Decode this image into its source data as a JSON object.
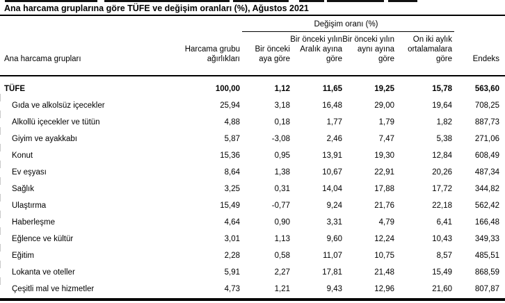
{
  "title": "Ana harcama gruplarına göre TÜFE ve değişim oranları (%), Ağustos 2021",
  "table": {
    "group_header": "Değişim oranı (%)",
    "columns": [
      "Ana harcama grupları",
      "Harcama grubu ağırlıkları",
      "Bir önceki aya göre",
      "Bir önceki yılın Aralık ayına göre",
      "Bir önceki yılın aynı ayına göre",
      "On iki aylık ortalamalara göre",
      "Endeks"
    ],
    "rows": [
      {
        "name": "TÜFE",
        "bold": true,
        "values": [
          "100,00",
          "1,12",
          "11,65",
          "19,25",
          "15,78",
          "563,60"
        ]
      },
      {
        "name": "Gıda ve alkolsüz içecekler",
        "values": [
          "25,94",
          "3,18",
          "16,48",
          "29,00",
          "19,64",
          "708,25"
        ]
      },
      {
        "name": "Alkollü içecekler ve tütün",
        "values": [
          "4,88",
          "0,18",
          "1,77",
          "1,79",
          "1,82",
          "887,73"
        ]
      },
      {
        "name": "Giyim ve ayakkabı",
        "values": [
          "5,87",
          "-3,08",
          "2,46",
          "7,47",
          "5,38",
          "271,06"
        ]
      },
      {
        "name": "Konut",
        "values": [
          "15,36",
          "0,95",
          "13,91",
          "19,30",
          "12,84",
          "608,49"
        ]
      },
      {
        "name": "Ev eşyası",
        "values": [
          "8,64",
          "1,38",
          "10,67",
          "22,91",
          "20,26",
          "487,34"
        ]
      },
      {
        "name": "Sağlık",
        "values": [
          "3,25",
          "0,31",
          "14,04",
          "17,88",
          "17,72",
          "344,82"
        ]
      },
      {
        "name": "Ulaştırma",
        "values": [
          "15,49",
          "-0,77",
          "9,24",
          "21,76",
          "22,18",
          "562,42"
        ]
      },
      {
        "name": "Haberleşme",
        "values": [
          "4,64",
          "0,90",
          "3,31",
          "4,79",
          "6,41",
          "166,48"
        ]
      },
      {
        "name": "Eğlence ve kültür",
        "values": [
          "3,01",
          "1,13",
          "9,60",
          "12,24",
          "10,43",
          "349,33"
        ]
      },
      {
        "name": "Eğitim",
        "values": [
          "2,28",
          "0,58",
          "11,07",
          "10,75",
          "8,57",
          "485,51"
        ]
      },
      {
        "name": "Lokanta ve oteller",
        "values": [
          "5,91",
          "2,27",
          "17,81",
          "21,48",
          "15,49",
          "868,59"
        ]
      },
      {
        "name": "Çeşitli mal ve hizmetler",
        "values": [
          "4,73",
          "1,21",
          "9,43",
          "12,96",
          "21,60",
          "807,87"
        ]
      }
    ]
  }
}
